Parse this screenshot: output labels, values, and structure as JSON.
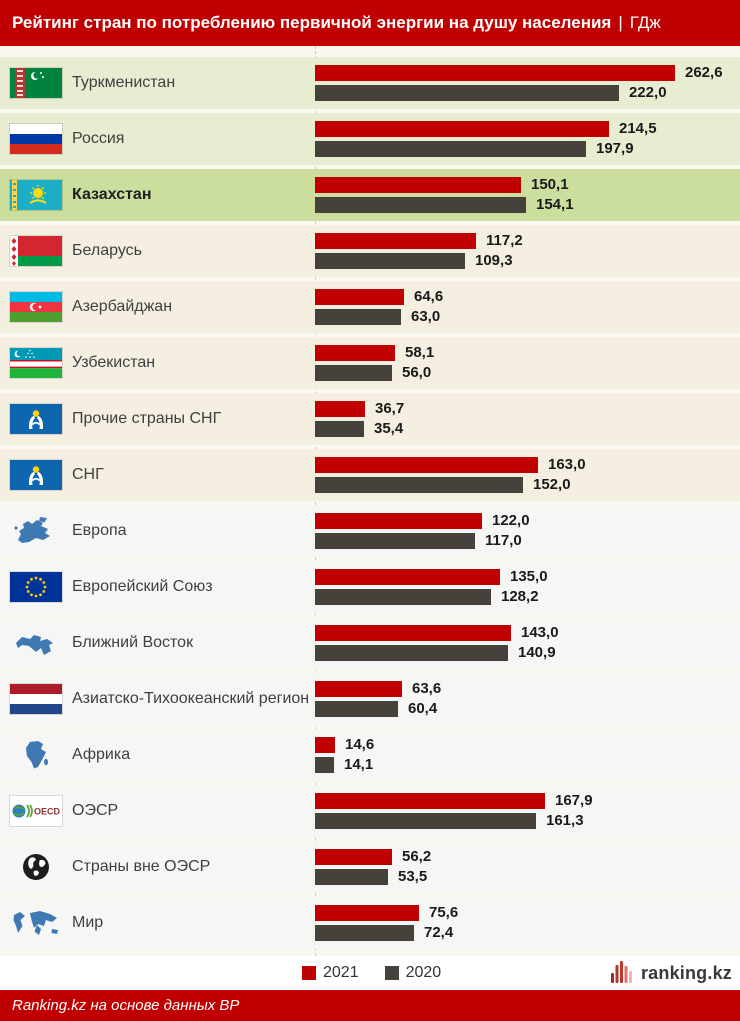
{
  "header": {
    "title": "Рейтинг стран по потреблению первичной энергии на душу населения",
    "separator": "|",
    "unit": "ГДж"
  },
  "chart_data": {
    "type": "bar",
    "orientation": "horizontal",
    "title": "Рейтинг стран по потреблению первичной энергии на душу населения | ГДж",
    "unit": "ГДж",
    "categories": [
      "Туркменистан",
      "Россия",
      "Казахстан",
      "Беларусь",
      "Азербайджан",
      "Узбекистан",
      "Прочие страны СНГ",
      "СНГ",
      "Европа",
      "Европейский Союз",
      "Ближний Восток",
      "Азиатско-Тихоокеанский регион",
      "Африка",
      "ОЭСР",
      "Страны вне ОЭСР",
      "Мир"
    ],
    "series": [
      {
        "name": "2021",
        "color": "#C00000",
        "values": [
          262.6,
          214.5,
          150.1,
          117.2,
          64.6,
          58.1,
          36.7,
          163.0,
          122.0,
          135.0,
          143.0,
          63.6,
          14.6,
          167.9,
          56.2,
          75.6
        ]
      },
      {
        "name": "2020",
        "color": "#46413A",
        "values": [
          222.0,
          197.9,
          154.1,
          109.3,
          63.0,
          56.0,
          35.4,
          152.0,
          117.0,
          128.2,
          140.9,
          60.4,
          14.1,
          161.3,
          53.5,
          72.4
        ]
      }
    ],
    "xlim": [
      0,
      290
    ],
    "value_labels": true,
    "decimal_separator": ",",
    "legend_position": "bottom",
    "grid": false,
    "highlighted_category": "Казахстан"
  },
  "rows": [
    {
      "label": "Туркменистан",
      "icon": "turkmenistan-flag",
      "v2021": "262,6",
      "v2020": "222,0",
      "band": "green",
      "bold": false
    },
    {
      "label": "Россия",
      "icon": "russia-flag",
      "v2021": "214,5",
      "v2020": "197,9",
      "band": "green",
      "bold": false
    },
    {
      "label": "Казахстан",
      "icon": "kazakhstan-flag",
      "v2021": "150,1",
      "v2020": "154,1",
      "band": "highlight",
      "bold": true
    },
    {
      "label": "Беларусь",
      "icon": "belarus-flag",
      "v2021": "117,2",
      "v2020": "109,3",
      "band": "cream",
      "bold": false
    },
    {
      "label": "Азербайджан",
      "icon": "azerbaijan-flag",
      "v2021": "64,6",
      "v2020": "63,0",
      "band": "cream",
      "bold": false
    },
    {
      "label": "Узбекистан",
      "icon": "uzbekistan-flag",
      "v2021": "58,1",
      "v2020": "56,0",
      "band": "cream",
      "bold": false
    },
    {
      "label": "Прочие страны СНГ",
      "icon": "cis-emblem",
      "v2021": "36,7",
      "v2020": "35,4",
      "band": "cream",
      "bold": false
    },
    {
      "label": "СНГ",
      "icon": "cis-emblem",
      "v2021": "163,0",
      "v2020": "152,0",
      "band": "cream",
      "bold": false
    },
    {
      "label": "Европа",
      "icon": "europe-map",
      "v2021": "122,0",
      "v2020": "117,0",
      "band": "gray",
      "bold": false
    },
    {
      "label": "Европейский Союз",
      "icon": "eu-flag",
      "v2021": "135,0",
      "v2020": "128,2",
      "band": "gray",
      "bold": false
    },
    {
      "label": "Ближний Восток",
      "icon": "middle-east-map",
      "v2021": "143,0",
      "v2020": "140,9",
      "band": "gray",
      "bold": false
    },
    {
      "label": "Азиатско-Тихоокеанский регион",
      "icon": "red-white-blue-flag",
      "v2021": "63,6",
      "v2020": "60,4",
      "band": "gray",
      "bold": false
    },
    {
      "label": "Африка",
      "icon": "africa-map",
      "v2021": "14,6",
      "v2020": "14,1",
      "band": "gray",
      "bold": false
    },
    {
      "label": "ОЭСР",
      "icon": "oecd-logo",
      "v2021": "167,9",
      "v2020": "161,3",
      "band": "gray",
      "bold": false
    },
    {
      "label": "Страны вне ОЭСР",
      "icon": "globe-icon",
      "v2021": "56,2",
      "v2020": "53,5",
      "band": "gray",
      "bold": false
    },
    {
      "label": "Мир",
      "icon": "world-map",
      "v2021": "75,6",
      "v2020": "72,4",
      "band": "gray",
      "bold": false
    }
  ],
  "legend": {
    "items": [
      {
        "label": "2021",
        "color": "#C00000"
      },
      {
        "label": "2020",
        "color": "#46413A"
      }
    ]
  },
  "brand": {
    "logo_text": "ranking.kz"
  },
  "footer": {
    "source": "Ranking.kz на основе данных BP"
  },
  "colors": {
    "accent_red": "#C00000",
    "bar_gray": "#46413A",
    "row_green": "#E8EDD2",
    "row_highlight": "#CBDE9E",
    "row_cream": "#F5EFE2",
    "row_gray": "#F6F6F4"
  }
}
